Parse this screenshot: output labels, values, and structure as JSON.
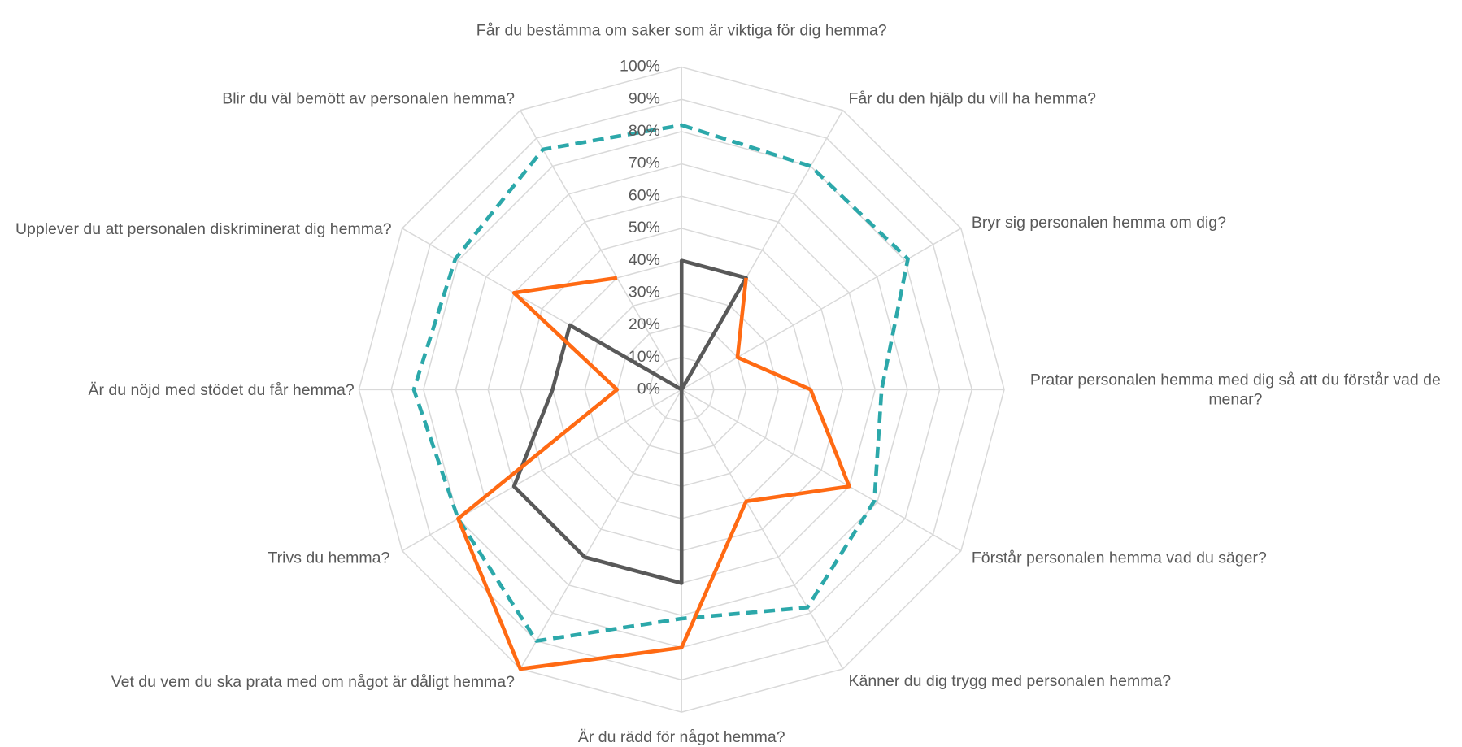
{
  "chart_data": {
    "type": "radar",
    "categories": [
      "Får du bestämma om saker som är viktiga för dig hemma?",
      "Får du den hjälp du vill ha hemma?",
      "Bryr sig personalen hemma om dig?",
      "Pratar personalen hemma med dig så att du förstår vad de menar?",
      "Förstår personalen hemma vad du säger?",
      "Känner du dig trygg med personalen hemma?",
      "Är du rädd för något hemma?",
      "Vet du vem du ska prata med om något är dåligt hemma?",
      "Trivs du hemma?",
      "Är du nöjd med stödet du får hemma?",
      "Upplever du att personalen diskriminerat dig hemma?",
      "Blir du väl bemött av personalen hemma?"
    ],
    "series": [
      {
        "color": "#2ca8aa",
        "line_style": "dashed",
        "values": [
          82,
          80,
          81,
          62,
          69,
          78,
          71,
          90,
          80,
          83,
          81,
          86
        ]
      },
      {
        "color": "#595959",
        "line_style": "solid",
        "values": [
          40,
          40,
          0,
          0,
          0,
          0,
          60,
          60,
          60,
          40,
          40,
          0
        ]
      },
      {
        "color": "#ff6a13",
        "line_style": "solid",
        "values": [
          null,
          40,
          20,
          40,
          60,
          40,
          80,
          100,
          80,
          20,
          60,
          40
        ]
      }
    ],
    "ylim": [
      0,
      100
    ],
    "yticks": [
      {
        "value": 0,
        "label": "0%"
      },
      {
        "value": 10,
        "label": "10%"
      },
      {
        "value": 20,
        "label": "20%"
      },
      {
        "value": 30,
        "label": "30%"
      },
      {
        "value": 40,
        "label": "40%"
      },
      {
        "value": 50,
        "label": "50%"
      },
      {
        "value": 60,
        "label": "60%"
      },
      {
        "value": 70,
        "label": "70%"
      },
      {
        "value": 80,
        "label": "80%"
      },
      {
        "value": 90,
        "label": "90%"
      },
      {
        "value": 100,
        "label": "100%"
      }
    ],
    "grid": true
  }
}
